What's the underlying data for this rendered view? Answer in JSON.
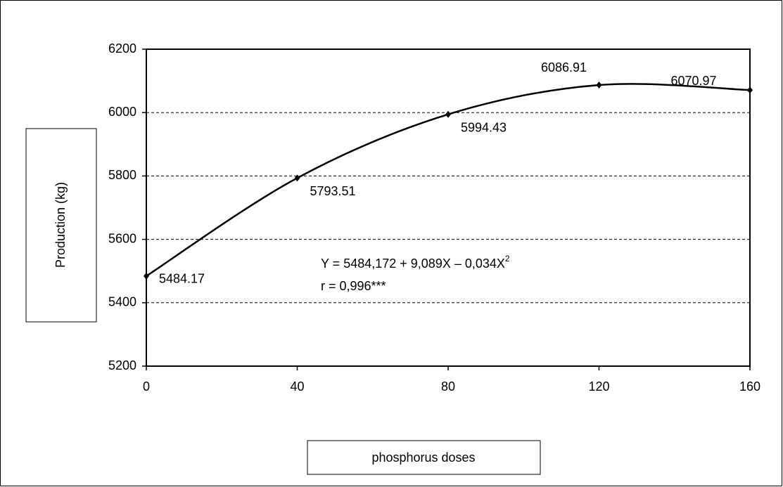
{
  "chart_data": {
    "type": "line",
    "x_label": "phosphorus doses",
    "y_label": "Production (kg)",
    "x": [
      0,
      40,
      80,
      120,
      160
    ],
    "series": [
      {
        "name": "Production",
        "color": "#000000",
        "values": [
          5484.17,
          5793.51,
          5994.43,
          6086.91,
          6070.97
        ]
      }
    ],
    "xlim": [
      0,
      160
    ],
    "xticks": [
      0,
      40,
      80,
      120,
      160
    ],
    "ylim": [
      5200,
      6200
    ],
    "yticks": [
      5200,
      5400,
      5600,
      5800,
      6000,
      6200
    ],
    "grid": true,
    "annotations": [
      {
        "text": "Y = 5484,172 + 9,089X – 0,034X",
        "sup": "2"
      },
      {
        "text": "r = 0,996***"
      }
    ]
  }
}
